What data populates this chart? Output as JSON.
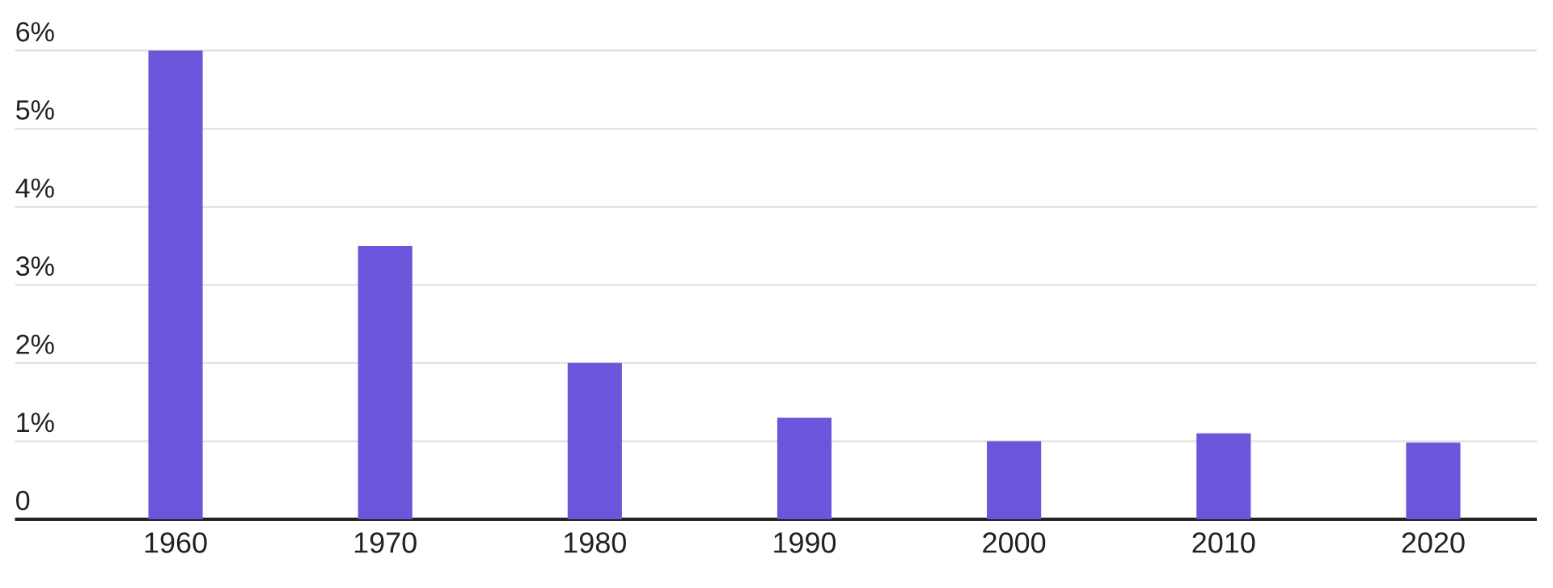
{
  "chart_data": {
    "type": "bar",
    "categories": [
      "1960",
      "1970",
      "1980",
      "1990",
      "2000",
      "2010",
      "2020"
    ],
    "values": [
      6.0,
      3.5,
      2.0,
      1.3,
      1.0,
      1.1,
      0.98
    ],
    "color": "#6b55db",
    "ylim": [
      0,
      6
    ],
    "yticks": [
      0,
      {
        "value": 1,
        "label": "1%"
      },
      {
        "value": 2,
        "label": "2%"
      },
      {
        "value": 3,
        "label": "3%"
      },
      {
        "value": 4,
        "label": "4%"
      },
      {
        "value": 5,
        "label": "5%"
      },
      {
        "value": 6,
        "label": "6%"
      }
    ],
    "grid": "y"
  }
}
